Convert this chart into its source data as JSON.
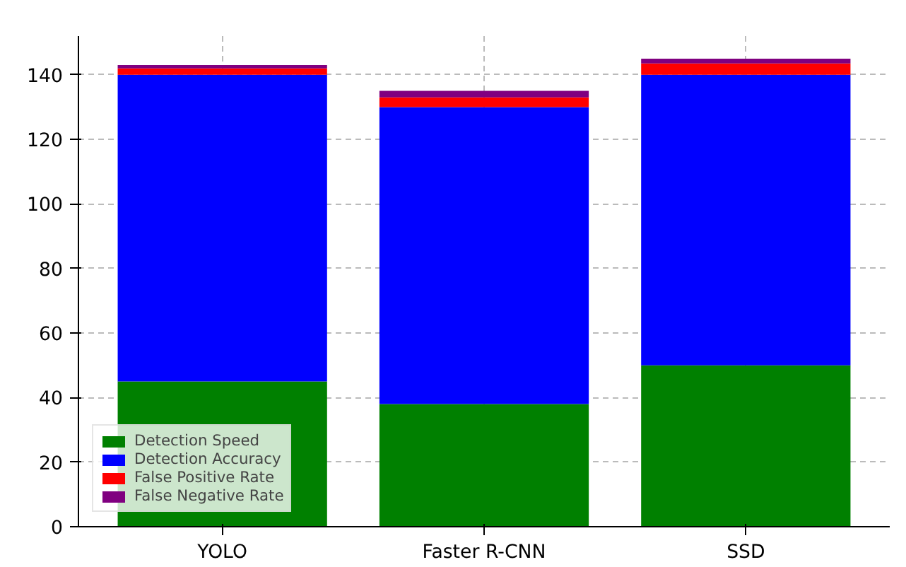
{
  "chart_data": {
    "type": "bar",
    "stacked": true,
    "categories": [
      "YOLO",
      "Faster R-CNN",
      "SSD"
    ],
    "series": [
      {
        "name": "Detection Speed",
        "color": "#008000",
        "values": [
          45,
          38,
          50
        ]
      },
      {
        "name": "Detection Accuracy",
        "color": "#0000ff",
        "values": [
          95,
          92,
          90
        ]
      },
      {
        "name": "False Positive Rate",
        "color": "#ff0000",
        "values": [
          2,
          3,
          3.5
        ]
      },
      {
        "name": "False Negative Rate",
        "color": "#800080",
        "values": [
          1,
          2,
          1.5
        ]
      }
    ],
    "ylim": [
      0,
      152
    ],
    "yticks": [
      0,
      20,
      40,
      60,
      80,
      100,
      120,
      140
    ],
    "grid": true,
    "legend": "bottom left"
  }
}
